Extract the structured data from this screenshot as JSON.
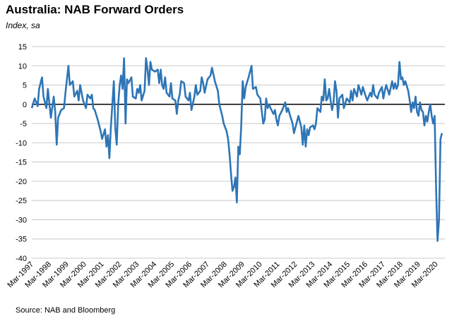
{
  "header": {
    "title": "Australia: NAB Forward Orders",
    "subtitle": "Index, sa"
  },
  "footer": {
    "source": "Source: NAB and Bloomberg"
  },
  "colors": {
    "series": "#2E75B6",
    "grid": "#C8C8C8",
    "zero_line": "#000000"
  },
  "chart_data": {
    "type": "line",
    "title": "Australia: NAB Forward Orders",
    "subtitle": "Index, sa",
    "ylim": [
      -40,
      15
    ],
    "yticks": [
      15,
      10,
      5,
      0,
      -5,
      -10,
      -15,
      -20,
      -25,
      -30,
      -35,
      -40
    ],
    "xlim": [
      "Mar-1997",
      "Sep-2020"
    ],
    "xticks": [
      "Mar-1997",
      "Mar-1998",
      "Mar-1999",
      "Mar-2000",
      "Mar-2001",
      "Mar-2002",
      "Mar-2003",
      "Mar-2004",
      "Mar-2005",
      "Mar-2006",
      "Mar-2007",
      "Mar-2008",
      "Mar-2009",
      "Mar-2010",
      "Mar-2011",
      "Mar-2012",
      "Mar-2013",
      "Mar-2014",
      "Mar-2015",
      "Mar-2016",
      "Mar-2017",
      "Mar-2018",
      "Mar-2019",
      "Mar-2020"
    ],
    "grid": true,
    "legend": "none",
    "series": [
      {
        "points": [
          [
            "Mar-1997",
            -1
          ],
          [
            "May-1997",
            1.5
          ],
          [
            "Jul-1997",
            -0.5
          ],
          [
            "Aug-1997",
            4
          ],
          [
            "Oct-1997",
            7
          ],
          [
            "Nov-1997",
            2
          ],
          [
            "Jan-1998",
            -1
          ],
          [
            "Feb-1998",
            4
          ],
          [
            "Apr-1998",
            -3.5
          ],
          [
            "Jun-1998",
            2
          ],
          [
            "Jul-1998",
            -2
          ],
          [
            "Aug-1998",
            -10.5
          ],
          [
            "Sep-1998",
            -3.5
          ],
          [
            "Nov-1998",
            -1.5
          ],
          [
            "Jan-1999",
            -1
          ],
          [
            "Feb-1999",
            3
          ],
          [
            "Apr-1999",
            10
          ],
          [
            "May-1999",
            5
          ],
          [
            "Jul-1999",
            6
          ],
          [
            "Aug-1999",
            2
          ],
          [
            "Oct-1999",
            3.5
          ],
          [
            "Nov-1999",
            1
          ],
          [
            "Dec-1999",
            5
          ],
          [
            "Feb-2000",
            1
          ],
          [
            "Apr-2000",
            -1
          ],
          [
            "May-2000",
            2.5
          ],
          [
            "Jul-2000",
            1.5
          ],
          [
            "Aug-2000",
            2.5
          ],
          [
            "Sep-2000",
            -1
          ],
          [
            "Oct-2000",
            -1.5
          ],
          [
            "Dec-2000",
            -4
          ],
          [
            "Feb-2001",
            -7
          ],
          [
            "Mar-2001",
            -9
          ],
          [
            "May-2001",
            -6.5
          ],
          [
            "Jun-2001",
            -11
          ],
          [
            "Jul-2001",
            -8
          ],
          [
            "Aug-2001",
            -14
          ],
          [
            "Sep-2001",
            -6
          ],
          [
            "Nov-2001",
            6
          ],
          [
            "Dec-2001",
            -6
          ],
          [
            "Jan-2002",
            -10.5
          ],
          [
            "Feb-2002",
            0
          ],
          [
            "Mar-2002",
            5
          ],
          [
            "Apr-2002",
            7.5
          ],
          [
            "May-2002",
            4
          ],
          [
            "Jun-2002",
            12
          ],
          [
            "Jul-2002",
            -5
          ],
          [
            "Aug-2002",
            6.5
          ],
          [
            "Sep-2002",
            5.5
          ],
          [
            "Nov-2002",
            7
          ],
          [
            "Dec-2002",
            2
          ],
          [
            "Feb-2003",
            1.5
          ],
          [
            "Mar-2003",
            4
          ],
          [
            "Apr-2003",
            3
          ],
          [
            "May-2003",
            5
          ],
          [
            "Jun-2003",
            1
          ],
          [
            "Aug-2003",
            3.5
          ],
          [
            "Sep-2003",
            12
          ],
          [
            "Oct-2003",
            9
          ],
          [
            "Nov-2003",
            5
          ],
          [
            "Dec-2003",
            11
          ],
          [
            "Jan-2004",
            9
          ],
          [
            "Mar-2004",
            8.5
          ],
          [
            "May-2004",
            9
          ],
          [
            "Jun-2004",
            5.5
          ],
          [
            "Jul-2004",
            9
          ],
          [
            "Aug-2004",
            5
          ],
          [
            "Sep-2004",
            4
          ],
          [
            "Oct-2004",
            7
          ],
          [
            "Nov-2004",
            3
          ],
          [
            "Jan-2005",
            2
          ],
          [
            "Feb-2005",
            5.5
          ],
          [
            "Mar-2005",
            1.5
          ],
          [
            "May-2005",
            1
          ],
          [
            "Jun-2005",
            -2.5
          ],
          [
            "Jul-2005",
            1
          ],
          [
            "Aug-2005",
            2.5
          ],
          [
            "Sep-2005",
            6
          ],
          [
            "Nov-2005",
            5.5
          ],
          [
            "Dec-2005",
            2
          ],
          [
            "Feb-2006",
            1
          ],
          [
            "Mar-2006",
            3
          ],
          [
            "Apr-2006",
            -1.5
          ],
          [
            "Jun-2006",
            2
          ],
          [
            "Jul-2006",
            5
          ],
          [
            "Aug-2006",
            2.5
          ],
          [
            "Oct-2006",
            3.5
          ],
          [
            "Nov-2006",
            7
          ],
          [
            "Dec-2006",
            5.5
          ],
          [
            "Jan-2007",
            3
          ],
          [
            "Mar-2007",
            6.5
          ],
          [
            "May-2007",
            7.5
          ],
          [
            "Jun-2007",
            9.5
          ],
          [
            "Aug-2007",
            6
          ],
          [
            "Oct-2007",
            3.5
          ],
          [
            "Nov-2007",
            0
          ],
          [
            "Jan-2008",
            -3
          ],
          [
            "Feb-2008",
            -5
          ],
          [
            "Mar-2008",
            -6
          ],
          [
            "Apr-2008",
            -7
          ],
          [
            "May-2008",
            -9
          ],
          [
            "Jun-2008",
            -13
          ],
          [
            "Jul-2008",
            -18
          ],
          [
            "Aug-2008",
            -22.5
          ],
          [
            "Sep-2008",
            -21.5
          ],
          [
            "Oct-2008",
            -19
          ],
          [
            "Nov-2008",
            -25.5
          ],
          [
            "Dec-2008",
            -11
          ],
          [
            "Jan-2009",
            -13
          ],
          [
            "Feb-2009",
            -5.5
          ],
          [
            "Mar-2009",
            6
          ],
          [
            "Apr-2009",
            1.5
          ],
          [
            "May-2009",
            4.5
          ],
          [
            "Jul-2009",
            7
          ],
          [
            "Sep-2009",
            10
          ],
          [
            "Oct-2009",
            4
          ],
          [
            "Dec-2009",
            4.5
          ],
          [
            "Jan-2010",
            2.5
          ],
          [
            "Mar-2010",
            1.5
          ],
          [
            "May-2010",
            -5
          ],
          [
            "Jun-2010",
            -4
          ],
          [
            "Jul-2010",
            1.5
          ],
          [
            "Aug-2010",
            -1
          ],
          [
            "Sep-2010",
            0
          ],
          [
            "Oct-2010",
            -1
          ],
          [
            "Dec-2010",
            -2.5
          ],
          [
            "Jan-2011",
            -1.5
          ],
          [
            "Feb-2011",
            -4
          ],
          [
            "Mar-2011",
            -5.5
          ],
          [
            "Apr-2011",
            -3
          ],
          [
            "Jun-2011",
            -1.5
          ],
          [
            "Aug-2011",
            0.5
          ],
          [
            "Sep-2011",
            -2
          ],
          [
            "Oct-2011",
            -1
          ],
          [
            "Nov-2011",
            -2.5
          ],
          [
            "Jan-2012",
            -5
          ],
          [
            "Feb-2012",
            -7.5
          ],
          [
            "Apr-2012",
            -4.5
          ],
          [
            "May-2012",
            -3
          ],
          [
            "Jul-2012",
            -6
          ],
          [
            "Aug-2012",
            -10.5
          ],
          [
            "Sep-2012",
            -5.5
          ],
          [
            "Oct-2012",
            -11
          ],
          [
            "Nov-2012",
            -6.5
          ],
          [
            "Dec-2012",
            -8
          ],
          [
            "Jan-2013",
            -6
          ],
          [
            "Mar-2013",
            -5.5
          ],
          [
            "Apr-2013",
            -6.5
          ],
          [
            "May-2013",
            -5
          ],
          [
            "Jun-2013",
            -1
          ],
          [
            "Aug-2013",
            -2
          ],
          [
            "Sep-2013",
            2
          ],
          [
            "Oct-2013",
            1
          ],
          [
            "Nov-2013",
            6.5
          ],
          [
            "Dec-2013",
            1
          ],
          [
            "Jan-2014",
            1.5
          ],
          [
            "Feb-2014",
            4
          ],
          [
            "Mar-2014",
            1
          ],
          [
            "Apr-2014",
            -1.5
          ],
          [
            "May-2014",
            0.5
          ],
          [
            "Jun-2014",
            6
          ],
          [
            "Jul-2014",
            3.5
          ],
          [
            "Aug-2014",
            -3.5
          ],
          [
            "Sep-2014",
            1.5
          ],
          [
            "Nov-2014",
            2.5
          ],
          [
            "Dec-2014",
            -1
          ],
          [
            "Feb-2015",
            1.5
          ],
          [
            "Apr-2015",
            0.5
          ],
          [
            "May-2015",
            3.5
          ],
          [
            "Jun-2015",
            1
          ],
          [
            "Jul-2015",
            4
          ],
          [
            "Sep-2015",
            2
          ],
          [
            "Oct-2015",
            5
          ],
          [
            "Dec-2015",
            2.5
          ],
          [
            "Jan-2016",
            4.5
          ],
          [
            "Mar-2016",
            2
          ],
          [
            "Apr-2016",
            1
          ],
          [
            "Jun-2016",
            3
          ],
          [
            "Jul-2016",
            2
          ],
          [
            "Aug-2016",
            5
          ],
          [
            "Sep-2016",
            2.5
          ],
          [
            "Nov-2016",
            1.5
          ],
          [
            "Dec-2016",
            3
          ],
          [
            "Feb-2017",
            4.5
          ],
          [
            "Mar-2017",
            1.5
          ],
          [
            "Apr-2017",
            3.5
          ],
          [
            "May-2017",
            5
          ],
          [
            "Jul-2017",
            2.5
          ],
          [
            "Sep-2017",
            6
          ],
          [
            "Oct-2017",
            4
          ],
          [
            "Nov-2017",
            5.5
          ],
          [
            "Dec-2017",
            4
          ],
          [
            "Jan-2018",
            5
          ],
          [
            "Feb-2018",
            11
          ],
          [
            "Mar-2018",
            6.5
          ],
          [
            "Apr-2018",
            7
          ],
          [
            "May-2018",
            5
          ],
          [
            "Jun-2018",
            6
          ],
          [
            "Aug-2018",
            3.5
          ],
          [
            "Sep-2018",
            1
          ],
          [
            "Oct-2018",
            -2
          ],
          [
            "Nov-2018",
            0.5
          ],
          [
            "Dec-2018",
            -1
          ],
          [
            "Jan-2019",
            2
          ],
          [
            "Feb-2019",
            -2
          ],
          [
            "Mar-2019",
            -3
          ],
          [
            "Apr-2019",
            0.5
          ],
          [
            "May-2019",
            -1.5
          ],
          [
            "Jun-2019",
            -2
          ],
          [
            "Jul-2019",
            -5.5
          ],
          [
            "Aug-2019",
            -3
          ],
          [
            "Sep-2019",
            -4.5
          ],
          [
            "Oct-2019",
            -2
          ],
          [
            "Nov-2019",
            0
          ],
          [
            "Dec-2019",
            -3
          ],
          [
            "Jan-2020",
            -5
          ],
          [
            "Feb-2020",
            -3
          ],
          [
            "Mar-2020",
            -22
          ],
          [
            "Apr-2020",
            -35.5
          ],
          [
            "May-2020",
            -30
          ],
          [
            "Jun-2020",
            -9
          ],
          [
            "Jul-2020",
            -7.5
          ]
        ]
      }
    ]
  }
}
